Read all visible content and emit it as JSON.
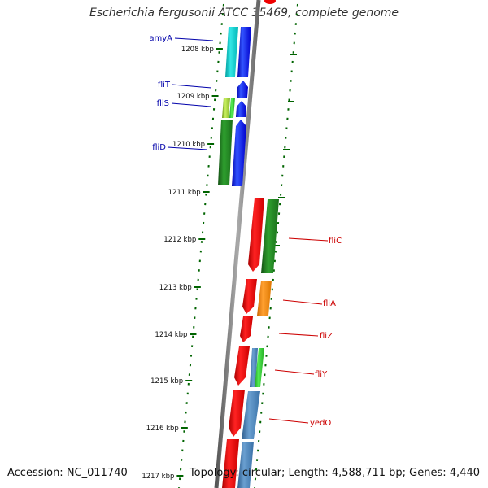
{
  "title": "Escherichia fergusonii ATCC 35469, complete genome",
  "footer": {
    "accession": "Accession: NC_011740",
    "summary": "Topology: circular; Length: 4,588,711 bp; Genes: 4,440"
  },
  "ticks": [
    "1208 kbp",
    "1209 kbp",
    "1210 kbp",
    "1211 kbp",
    "1212 kbp",
    "1213 kbp",
    "1214 kbp",
    "1215 kbp",
    "1216 kbp",
    "1217 kbp"
  ],
  "genes_left": [
    "amyA",
    "fliT",
    "fliS",
    "fliD"
  ],
  "genes_right": [
    "fliC",
    "fliA",
    "fliZ",
    "fliY",
    "yedO"
  ],
  "colors": {
    "blue": "#0000ee",
    "red": "#ee0000",
    "green": "#228b22",
    "cyan": "#00cccc",
    "orange": "#ff8c00",
    "steelblue": "#4682b4",
    "lightgreen": "#33cc33",
    "yellowgreen": "#9acd32",
    "backbone": "#888888",
    "dots": "#006400"
  }
}
